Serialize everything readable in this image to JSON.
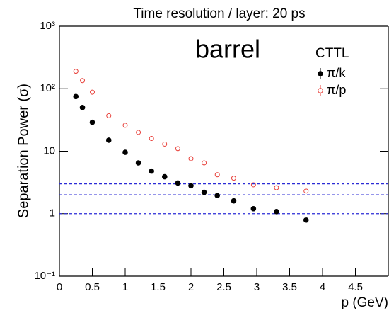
{
  "chart_data": {
    "type": "scatter",
    "title": "Time resolution / layer: 20 ps",
    "y_label": "Separation Power (σ)",
    "x_label": "p (GeV)",
    "annotation": "barrel",
    "annotation_color": "#f07a1a",
    "legend_title": "CTTL",
    "log_y": true,
    "xlim": [
      0,
      5
    ],
    "ylim": [
      0.1,
      1000
    ],
    "xticks": [
      0,
      0.5,
      1,
      1.5,
      2,
      2.5,
      3,
      3.5,
      4,
      4.5
    ],
    "yticks": [
      {
        "value": 0.1,
        "label": "10⁻¹"
      },
      1,
      10,
      {
        "value": 100,
        "label": "10²"
      },
      {
        "value": 1000,
        "label": "10³"
      }
    ],
    "hlines": [
      1,
      2,
      3
    ],
    "hline_color": "#2b2bd6",
    "series": [
      {
        "name": "π/k",
        "color": "#000000",
        "filled": true,
        "x": [
          0.25,
          0.35,
          0.5,
          0.75,
          1.0,
          1.2,
          1.4,
          1.6,
          1.8,
          2.0,
          2.2,
          2.4,
          2.65,
          2.95,
          3.3,
          3.75
        ],
        "values": [
          75,
          50,
          29,
          15,
          9.6,
          6.5,
          4.8,
          3.9,
          3.1,
          2.8,
          2.2,
          1.95,
          1.6,
          1.2,
          1.08,
          0.79
        ]
      },
      {
        "name": "π/p",
        "color": "#e8403a",
        "filled": false,
        "x": [
          0.25,
          0.35,
          0.5,
          0.75,
          1.0,
          1.2,
          1.4,
          1.6,
          1.8,
          2.0,
          2.2,
          2.4,
          2.65,
          2.95,
          3.3,
          3.75
        ],
        "values": [
          190,
          135,
          88,
          37,
          26,
          20,
          16,
          13,
          11,
          7.6,
          6.5,
          4.2,
          3.7,
          2.9,
          2.6,
          2.3
        ]
      }
    ]
  }
}
